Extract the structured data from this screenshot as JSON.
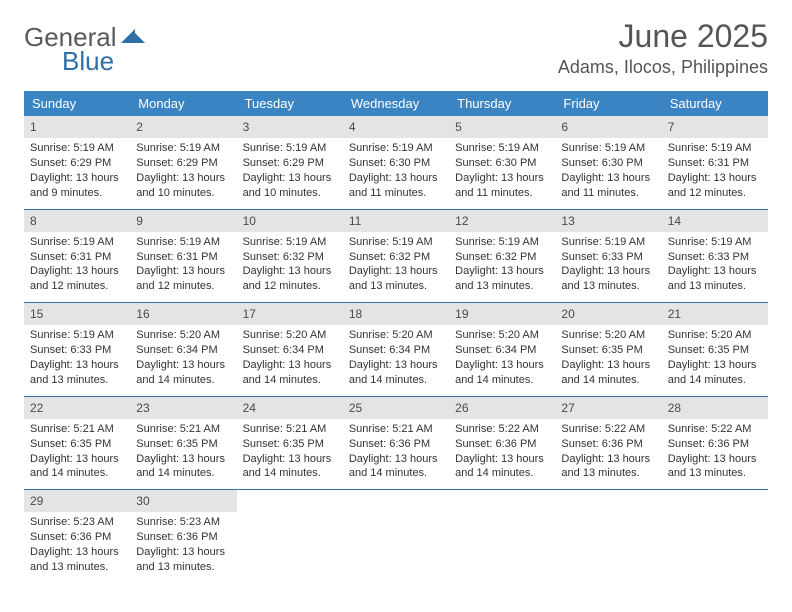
{
  "brand": {
    "part1": "General",
    "part2": "Blue"
  },
  "title": "June 2025",
  "location": "Adams, Ilocos, Philippines",
  "colors": {
    "header_bg": "#3a84c4",
    "header_text": "#ffffff",
    "daynum_bg": "#e4e4e4",
    "text": "#333333",
    "rule": "#3a6fa0",
    "brand_gray": "#5a5a5a",
    "brand_blue": "#2f6fa8"
  },
  "day_names": [
    "Sunday",
    "Monday",
    "Tuesday",
    "Wednesday",
    "Thursday",
    "Friday",
    "Saturday"
  ],
  "weeks": [
    [
      {
        "n": "1",
        "sr": "5:19 AM",
        "ss": "6:29 PM",
        "dl": "13 hours and 9 minutes."
      },
      {
        "n": "2",
        "sr": "5:19 AM",
        "ss": "6:29 PM",
        "dl": "13 hours and 10 minutes."
      },
      {
        "n": "3",
        "sr": "5:19 AM",
        "ss": "6:29 PM",
        "dl": "13 hours and 10 minutes."
      },
      {
        "n": "4",
        "sr": "5:19 AM",
        "ss": "6:30 PM",
        "dl": "13 hours and 11 minutes."
      },
      {
        "n": "5",
        "sr": "5:19 AM",
        "ss": "6:30 PM",
        "dl": "13 hours and 11 minutes."
      },
      {
        "n": "6",
        "sr": "5:19 AM",
        "ss": "6:30 PM",
        "dl": "13 hours and 11 minutes."
      },
      {
        "n": "7",
        "sr": "5:19 AM",
        "ss": "6:31 PM",
        "dl": "13 hours and 12 minutes."
      }
    ],
    [
      {
        "n": "8",
        "sr": "5:19 AM",
        "ss": "6:31 PM",
        "dl": "13 hours and 12 minutes."
      },
      {
        "n": "9",
        "sr": "5:19 AM",
        "ss": "6:31 PM",
        "dl": "13 hours and 12 minutes."
      },
      {
        "n": "10",
        "sr": "5:19 AM",
        "ss": "6:32 PM",
        "dl": "13 hours and 12 minutes."
      },
      {
        "n": "11",
        "sr": "5:19 AM",
        "ss": "6:32 PM",
        "dl": "13 hours and 13 minutes."
      },
      {
        "n": "12",
        "sr": "5:19 AM",
        "ss": "6:32 PM",
        "dl": "13 hours and 13 minutes."
      },
      {
        "n": "13",
        "sr": "5:19 AM",
        "ss": "6:33 PM",
        "dl": "13 hours and 13 minutes."
      },
      {
        "n": "14",
        "sr": "5:19 AM",
        "ss": "6:33 PM",
        "dl": "13 hours and 13 minutes."
      }
    ],
    [
      {
        "n": "15",
        "sr": "5:19 AM",
        "ss": "6:33 PM",
        "dl": "13 hours and 13 minutes."
      },
      {
        "n": "16",
        "sr": "5:20 AM",
        "ss": "6:34 PM",
        "dl": "13 hours and 14 minutes."
      },
      {
        "n": "17",
        "sr": "5:20 AM",
        "ss": "6:34 PM",
        "dl": "13 hours and 14 minutes."
      },
      {
        "n": "18",
        "sr": "5:20 AM",
        "ss": "6:34 PM",
        "dl": "13 hours and 14 minutes."
      },
      {
        "n": "19",
        "sr": "5:20 AM",
        "ss": "6:34 PM",
        "dl": "13 hours and 14 minutes."
      },
      {
        "n": "20",
        "sr": "5:20 AM",
        "ss": "6:35 PM",
        "dl": "13 hours and 14 minutes."
      },
      {
        "n": "21",
        "sr": "5:20 AM",
        "ss": "6:35 PM",
        "dl": "13 hours and 14 minutes."
      }
    ],
    [
      {
        "n": "22",
        "sr": "5:21 AM",
        "ss": "6:35 PM",
        "dl": "13 hours and 14 minutes."
      },
      {
        "n": "23",
        "sr": "5:21 AM",
        "ss": "6:35 PM",
        "dl": "13 hours and 14 minutes."
      },
      {
        "n": "24",
        "sr": "5:21 AM",
        "ss": "6:35 PM",
        "dl": "13 hours and 14 minutes."
      },
      {
        "n": "25",
        "sr": "5:21 AM",
        "ss": "6:36 PM",
        "dl": "13 hours and 14 minutes."
      },
      {
        "n": "26",
        "sr": "5:22 AM",
        "ss": "6:36 PM",
        "dl": "13 hours and 14 minutes."
      },
      {
        "n": "27",
        "sr": "5:22 AM",
        "ss": "6:36 PM",
        "dl": "13 hours and 13 minutes."
      },
      {
        "n": "28",
        "sr": "5:22 AM",
        "ss": "6:36 PM",
        "dl": "13 hours and 13 minutes."
      }
    ],
    [
      {
        "n": "29",
        "sr": "5:23 AM",
        "ss": "6:36 PM",
        "dl": "13 hours and 13 minutes."
      },
      {
        "n": "30",
        "sr": "5:23 AM",
        "ss": "6:36 PM",
        "dl": "13 hours and 13 minutes."
      },
      null,
      null,
      null,
      null,
      null
    ]
  ],
  "labels": {
    "sunrise": "Sunrise:",
    "sunset": "Sunset:",
    "daylight": "Daylight:"
  }
}
